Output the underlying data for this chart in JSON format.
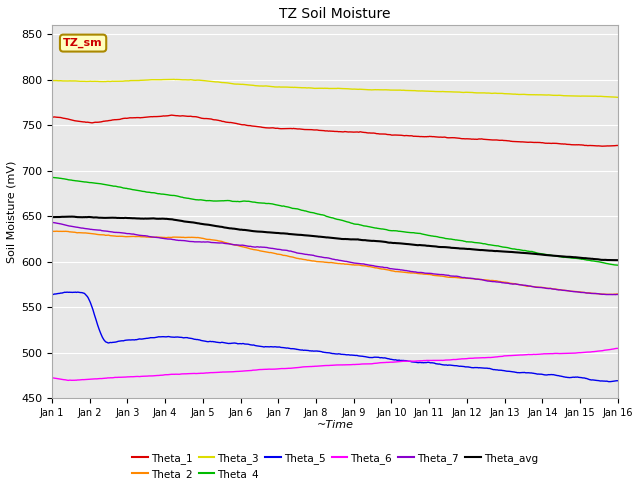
{
  "title": "TZ Soil Moisture",
  "xlabel": "~Time",
  "ylabel": "Soil Moisture (mV)",
  "ylim": [
    450,
    860
  ],
  "xlim": [
    0,
    15
  ],
  "background_color": "#e8e8e8",
  "xtick_labels": [
    "Jan 1",
    "Jan 2",
    "Jan 3",
    "Jan 4",
    "Jan 5",
    "Jan 6",
    "Jan 7",
    "Jan 8",
    "Jan 9",
    "Jan 10",
    "Jan 11",
    "Jan 12",
    "Jan 13",
    "Jan 14",
    "Jan 15",
    "Jan 16"
  ],
  "ytick_values": [
    450,
    500,
    550,
    600,
    650,
    700,
    750,
    800,
    850
  ],
  "legend_box_text": "TZ_sm",
  "series_colors": {
    "Theta_1": "#dd0000",
    "Theta_2": "#ff8800",
    "Theta_3": "#dddd00",
    "Theta_4": "#00bb00",
    "Theta_5": "#0000ee",
    "Theta_6": "#ff00ff",
    "Theta_7": "#8800cc",
    "Theta_avg": "#000000"
  }
}
